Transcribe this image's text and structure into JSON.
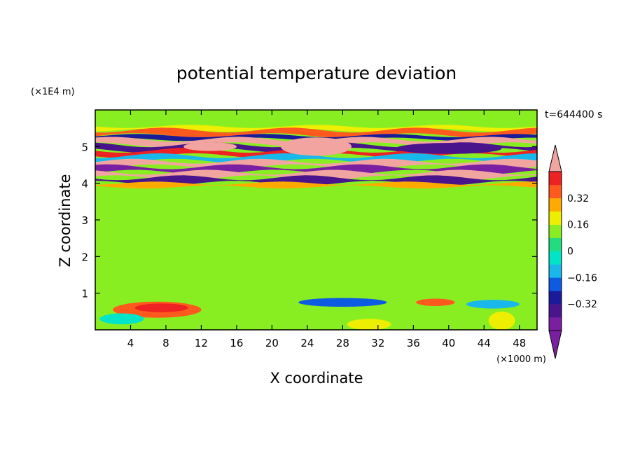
{
  "chart_data": {
    "type": "heatmap",
    "title": "potential temperature deviation",
    "xlabel": "X coordinate",
    "ylabel": "Z coordinate",
    "x_unit": "(×1000 m)",
    "y_unit": "(×1E4 m)",
    "time_label": "t=644400 s",
    "xlim": [
      0,
      50
    ],
    "ylim": [
      0,
      6
    ],
    "x_ticks": [
      4,
      8,
      12,
      16,
      20,
      24,
      28,
      32,
      36,
      40,
      44,
      48
    ],
    "x_tick_labels": [
      "4",
      "8",
      "12",
      "16",
      "20",
      "24",
      "28",
      "32",
      "36",
      "40",
      "44",
      "48"
    ],
    "y_ticks": [
      1,
      2,
      3,
      4,
      5
    ],
    "y_tick_labels": [
      "1",
      "2",
      "3",
      "4",
      "5"
    ],
    "colorbar": {
      "levels": [
        -0.48,
        -0.4,
        -0.32,
        -0.24,
        -0.16,
        -0.08,
        0,
        0.08,
        0.16,
        0.24,
        0.32,
        0.4,
        0.48
      ],
      "colors": [
        "#7b1fa2",
        "#4a148c",
        "#1b1b9a",
        "#0d5be0",
        "#19b8ea",
        "#00e5c8",
        "#22dd80",
        "#88ee22",
        "#eeee00",
        "#ffaa00",
        "#ff5a1e",
        "#ee2222",
        "#f2a5a0"
      ],
      "tick_values": [
        0.32,
        0.16,
        0,
        -0.16,
        -0.32
      ],
      "tick_labels": [
        "0.32",
        "0.16",
        "0",
        "−0.16",
        "−0.32"
      ]
    },
    "bands": [
      {
        "z": [
          5.45,
          5.55
        ],
        "level": 8
      },
      {
        "z": [
          5.3,
          5.45
        ],
        "level": 10
      },
      {
        "z": [
          5.2,
          5.3
        ],
        "level": 2
      },
      {
        "z": [
          5.05,
          5.2
        ],
        "level": 12
      },
      {
        "z": [
          4.9,
          5.05
        ],
        "level": 1
      },
      {
        "z": [
          4.75,
          4.9
        ],
        "level": 11
      },
      {
        "z": [
          4.6,
          4.75
        ],
        "level": 4
      },
      {
        "z": [
          4.45,
          4.6
        ],
        "level": 12
      },
      {
        "z": [
          4.3,
          4.45
        ],
        "level": 0
      },
      {
        "z": [
          4.15,
          4.3
        ],
        "level": 12
      },
      {
        "z": [
          4.0,
          4.15
        ],
        "level": 1
      },
      {
        "z": [
          3.9,
          4.0
        ],
        "level": 9
      }
    ],
    "blobs": [
      {
        "x": 7,
        "z": 0.55,
        "rx": 5,
        "rz": 0.22,
        "level": 10
      },
      {
        "x": 7.5,
        "z": 0.6,
        "rx": 3,
        "rz": 0.12,
        "level": 11
      },
      {
        "x": 38.5,
        "z": 0.75,
        "rx": 2.2,
        "rz": 0.1,
        "level": 10
      },
      {
        "x": 28,
        "z": 0.75,
        "rx": 5,
        "rz": 0.12,
        "level": 3
      },
      {
        "x": 45,
        "z": 0.7,
        "rx": 3,
        "rz": 0.12,
        "level": 4
      },
      {
        "x": 31,
        "z": 0.15,
        "rx": 2.5,
        "rz": 0.15,
        "level": 8
      },
      {
        "x": 46,
        "z": 0.25,
        "rx": 1.5,
        "rz": 0.25,
        "level": 8
      },
      {
        "x": 3,
        "z": 0.3,
        "rx": 2.5,
        "rz": 0.15,
        "level": 5
      },
      {
        "x": 25,
        "z": 5.0,
        "rx": 4,
        "rz": 0.25,
        "level": 12
      },
      {
        "x": 40,
        "z": 4.95,
        "rx": 6,
        "rz": 0.15,
        "level": 1
      },
      {
        "x": 13,
        "z": 5.0,
        "rx": 3,
        "rz": 0.12,
        "level": 12
      }
    ]
  }
}
